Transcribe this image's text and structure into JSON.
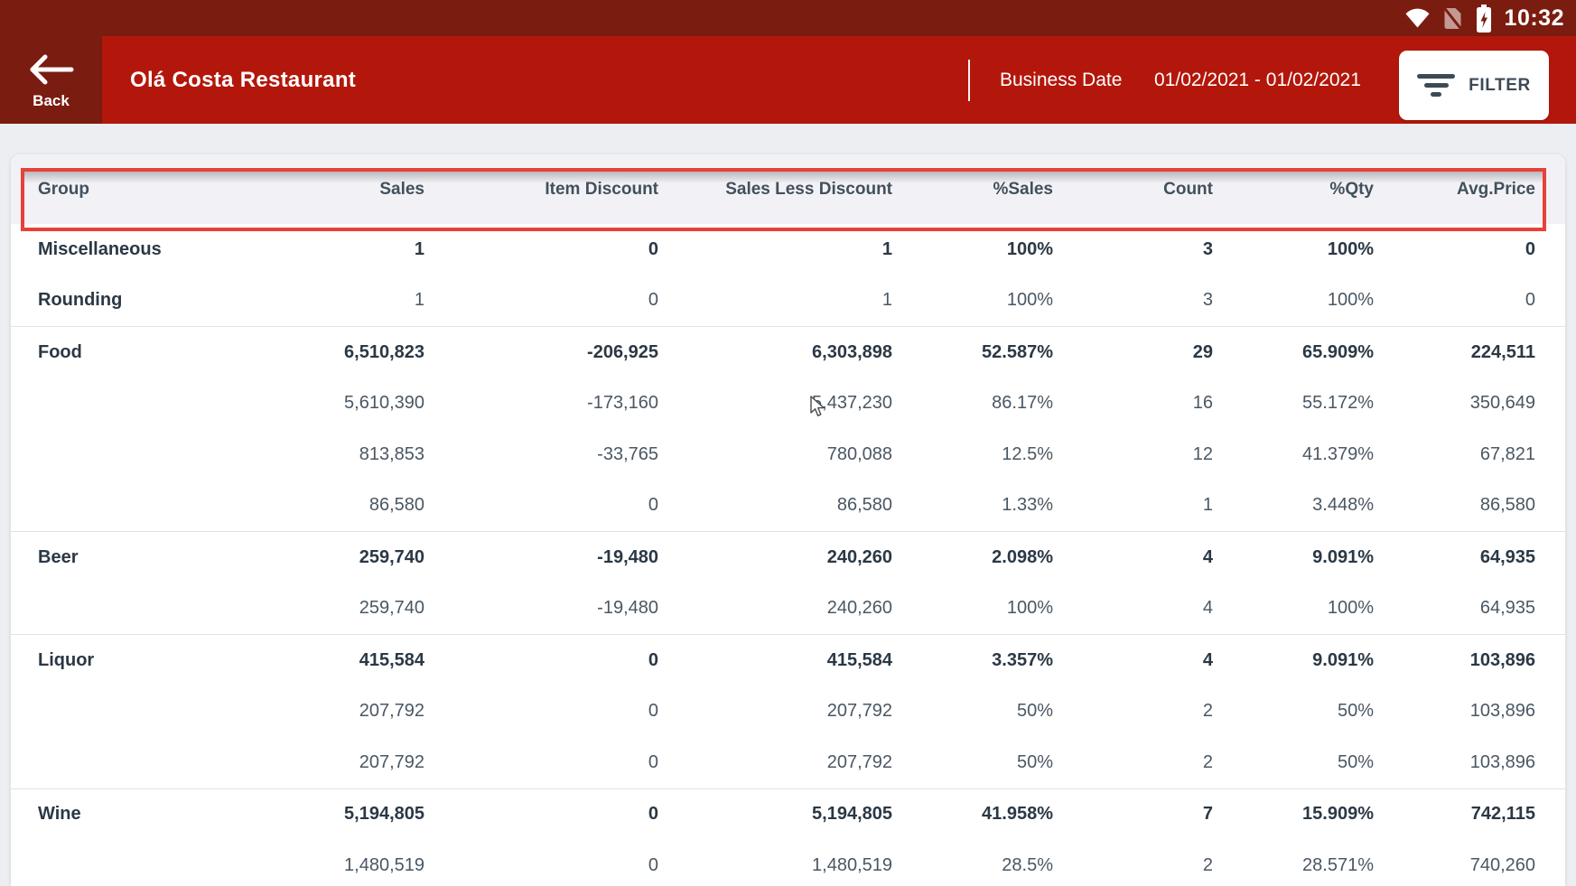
{
  "status_bar": {
    "time": "10:32",
    "icons": [
      "wifi-icon",
      "no-sim-icon",
      "battery-charging-icon"
    ]
  },
  "app_bar": {
    "back_label": "Back",
    "title": "Olá Costa Restaurant",
    "business_date_label": "Business Date",
    "business_date_value": "01/02/2021 - 01/02/2021",
    "filter_label": "FILTER"
  },
  "table": {
    "columns": [
      "Group",
      "Sales",
      "Item Discount",
      "Sales Less Discount",
      "%Sales",
      "Count",
      "%Qty",
      "Avg.Price"
    ],
    "groups": [
      {
        "rows": [
          {
            "label": "Miscellaneous",
            "bold": true,
            "cells": [
              "1",
              "0",
              "1",
              "100%",
              "3",
              "100%",
              "0"
            ]
          },
          {
            "label": "Rounding",
            "bold": false,
            "cells": [
              "1",
              "0",
              "1",
              "100%",
              "3",
              "100%",
              "0"
            ]
          }
        ]
      },
      {
        "rows": [
          {
            "label": "Food",
            "bold": true,
            "cells": [
              "6,510,823",
              "-206,925",
              "6,303,898",
              "52.587%",
              "29",
              "65.909%",
              "224,511"
            ]
          },
          {
            "label": "",
            "bold": false,
            "cells": [
              "5,610,390",
              "-173,160",
              "5,437,230",
              "86.17%",
              "16",
              "55.172%",
              "350,649"
            ]
          },
          {
            "label": "",
            "bold": false,
            "cells": [
              "813,853",
              "-33,765",
              "780,088",
              "12.5%",
              "12",
              "41.379%",
              "67,821"
            ]
          },
          {
            "label": "",
            "bold": false,
            "cells": [
              "86,580",
              "0",
              "86,580",
              "1.33%",
              "1",
              "3.448%",
              "86,580"
            ]
          }
        ]
      },
      {
        "rows": [
          {
            "label": "Beer",
            "bold": true,
            "cells": [
              "259,740",
              "-19,480",
              "240,260",
              "2.098%",
              "4",
              "9.091%",
              "64,935"
            ]
          },
          {
            "label": "",
            "bold": false,
            "cells": [
              "259,740",
              "-19,480",
              "240,260",
              "100%",
              "4",
              "100%",
              "64,935"
            ]
          }
        ]
      },
      {
        "rows": [
          {
            "label": "Liquor",
            "bold": true,
            "cells": [
              "415,584",
              "0",
              "415,584",
              "3.357%",
              "4",
              "9.091%",
              "103,896"
            ]
          },
          {
            "label": "",
            "bold": false,
            "cells": [
              "207,792",
              "0",
              "207,792",
              "50%",
              "2",
              "50%",
              "103,896"
            ]
          },
          {
            "label": "",
            "bold": false,
            "cells": [
              "207,792",
              "0",
              "207,792",
              "50%",
              "2",
              "50%",
              "103,896"
            ]
          }
        ]
      },
      {
        "rows": [
          {
            "label": "Wine",
            "bold": true,
            "cells": [
              "5,194,805",
              "0",
              "5,194,805",
              "41.958%",
              "7",
              "15.909%",
              "742,115"
            ]
          },
          {
            "label": "",
            "bold": false,
            "cells": [
              "1,480,519",
              "0",
              "1,480,519",
              "28.5%",
              "2",
              "28.571%",
              "740,260"
            ]
          }
        ]
      }
    ]
  },
  "annotation": {
    "type": "highlight-box",
    "target": "table-header-row",
    "color": "#e8413a"
  },
  "colors": {
    "status_bar": "#7b1c10",
    "app_bar": "#b3170b",
    "header_row_bg": "#f2f2f6",
    "page_bg": "#eceef1",
    "card_bg": "#ffffff",
    "table_text_bold": "#2b3845",
    "table_text": "#4a5763"
  }
}
